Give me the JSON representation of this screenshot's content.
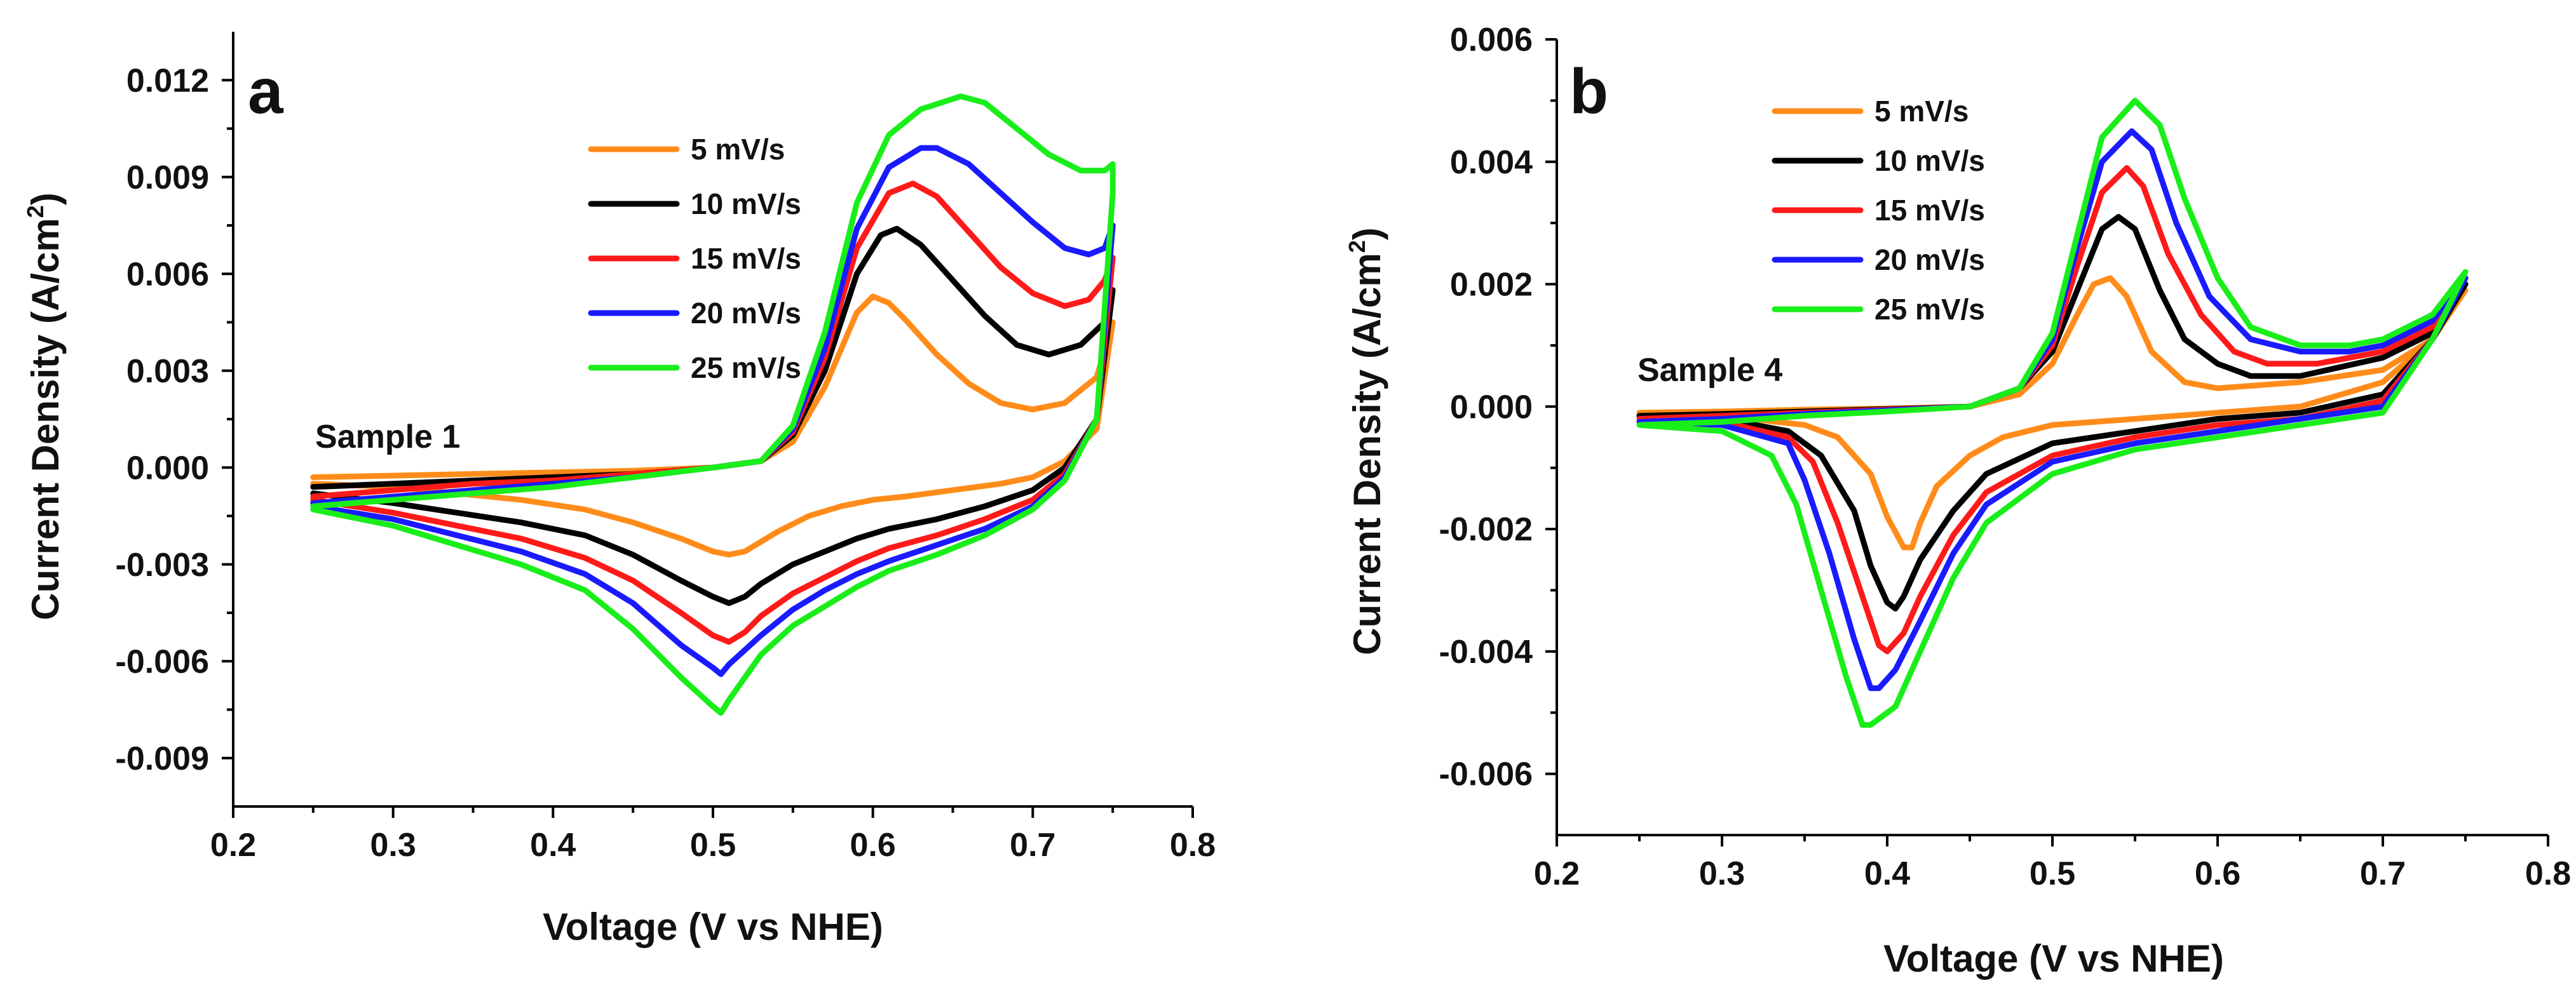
{
  "chart_data": [
    {
      "type": "line",
      "panel_label": "a",
      "annotation": "Sample 1",
      "xlabel": "Voltage (V vs NHE)",
      "ylabel": "Current Density (A/cm",
      "ylabel_sup": "2",
      "ylabel_close": ")",
      "xlim": [
        0.2,
        0.8
      ],
      "ylim": [
        -0.0105,
        0.0135
      ],
      "xticks": [
        0.2,
        0.3,
        0.4,
        0.5,
        0.6,
        0.7,
        0.8
      ],
      "xtick_labels": [
        "0.2",
        "0.3",
        "0.4",
        "0.5",
        "0.6",
        "0.7",
        "0.8"
      ],
      "yticks": [
        -0.009,
        -0.006,
        -0.003,
        0.0,
        0.003,
        0.006,
        0.009,
        0.012
      ],
      "ytick_labels": [
        "-0.009",
        "-0.006",
        "-0.003",
        "0.000",
        "0.003",
        "0.006",
        "0.009",
        "0.012"
      ],
      "legend_position": "upper-center",
      "series": [
        {
          "name": "5 mV/s",
          "color": "#ff8c1a",
          "x": [
            0.25,
            0.3,
            0.35,
            0.4,
            0.45,
            0.5,
            0.53,
            0.55,
            0.57,
            0.59,
            0.6,
            0.61,
            0.62,
            0.64,
            0.66,
            0.68,
            0.7,
            0.72,
            0.74,
            0.75,
            0.74,
            0.72,
            0.7,
            0.68,
            0.65,
            0.62,
            0.6,
            0.58,
            0.56,
            0.54,
            0.52,
            0.51,
            0.5,
            0.48,
            0.45,
            0.42,
            0.38,
            0.34,
            0.3,
            0.25
          ],
          "y": [
            -0.0003,
            -0.00025,
            -0.0002,
            -0.00015,
            -0.0001,
            0.0,
            0.0002,
            0.0008,
            0.0025,
            0.0048,
            0.0053,
            0.0051,
            0.0046,
            0.0035,
            0.0026,
            0.002,
            0.0018,
            0.002,
            0.0028,
            0.0045,
            0.0012,
            0.0002,
            -0.0003,
            -0.0005,
            -0.0007,
            -0.0009,
            -0.001,
            -0.0012,
            -0.0015,
            -0.002,
            -0.0026,
            -0.0027,
            -0.0026,
            -0.0022,
            -0.0017,
            -0.0013,
            -0.001,
            -0.0008,
            -0.0006,
            -0.0005
          ]
        },
        {
          "name": "10 mV/s",
          "color": "#000000",
          "x": [
            0.25,
            0.3,
            0.35,
            0.4,
            0.45,
            0.5,
            0.53,
            0.55,
            0.57,
            0.59,
            0.605,
            0.615,
            0.63,
            0.65,
            0.67,
            0.69,
            0.71,
            0.73,
            0.745,
            0.75,
            0.74,
            0.72,
            0.7,
            0.67,
            0.64,
            0.61,
            0.59,
            0.57,
            0.55,
            0.53,
            0.52,
            0.51,
            0.5,
            0.48,
            0.45,
            0.42,
            0.38,
            0.34,
            0.3,
            0.25
          ],
          "y": [
            -0.0006,
            -0.0005,
            -0.0004,
            -0.0003,
            -0.0002,
            0.0,
            0.0002,
            0.001,
            0.003,
            0.006,
            0.0072,
            0.0074,
            0.0069,
            0.0058,
            0.0047,
            0.0038,
            0.0035,
            0.0038,
            0.0045,
            0.0055,
            0.0015,
            0.0,
            -0.0007,
            -0.0012,
            -0.0016,
            -0.0019,
            -0.0022,
            -0.0026,
            -0.003,
            -0.0036,
            -0.004,
            -0.0042,
            -0.004,
            -0.0035,
            -0.0027,
            -0.0021,
            -0.0017,
            -0.0014,
            -0.0011,
            -0.0008
          ]
        },
        {
          "name": "15 mV/s",
          "color": "#ff1a1a",
          "x": [
            0.25,
            0.3,
            0.35,
            0.4,
            0.45,
            0.5,
            0.53,
            0.55,
            0.57,
            0.59,
            0.61,
            0.625,
            0.64,
            0.66,
            0.68,
            0.7,
            0.72,
            0.735,
            0.745,
            0.75,
            0.74,
            0.72,
            0.7,
            0.67,
            0.64,
            0.61,
            0.59,
            0.57,
            0.55,
            0.53,
            0.52,
            0.51,
            0.5,
            0.48,
            0.45,
            0.42,
            0.38,
            0.34,
            0.3,
            0.25
          ],
          "y": [
            -0.0009,
            -0.0007,
            -0.0005,
            -0.0004,
            -0.0002,
            0.0,
            0.0002,
            0.0011,
            0.0034,
            0.0068,
            0.0085,
            0.0088,
            0.0084,
            0.0073,
            0.0062,
            0.0054,
            0.005,
            0.0052,
            0.0058,
            0.0065,
            0.0015,
            -0.0002,
            -0.001,
            -0.0016,
            -0.0021,
            -0.0025,
            -0.0029,
            -0.0034,
            -0.0039,
            -0.0046,
            -0.0051,
            -0.0054,
            -0.0052,
            -0.0045,
            -0.0035,
            -0.0028,
            -0.0022,
            -0.0018,
            -0.0014,
            -0.001
          ]
        },
        {
          "name": "20 mV/s",
          "color": "#1a1aff",
          "x": [
            0.25,
            0.3,
            0.35,
            0.4,
            0.45,
            0.5,
            0.53,
            0.55,
            0.57,
            0.59,
            0.61,
            0.63,
            0.64,
            0.66,
            0.68,
            0.7,
            0.72,
            0.735,
            0.745,
            0.75,
            0.74,
            0.72,
            0.7,
            0.67,
            0.64,
            0.61,
            0.59,
            0.57,
            0.55,
            0.53,
            0.51,
            0.505,
            0.5,
            0.48,
            0.45,
            0.42,
            0.38,
            0.34,
            0.3,
            0.25
          ],
          "y": [
            -0.0011,
            -0.0009,
            -0.0007,
            -0.0005,
            -0.0003,
            0.0,
            0.0002,
            0.0012,
            0.0037,
            0.0074,
            0.0093,
            0.0099,
            0.0099,
            0.0094,
            0.0085,
            0.0076,
            0.0068,
            0.0066,
            0.0068,
            0.0075,
            0.0015,
            -0.0003,
            -0.0012,
            -0.0019,
            -0.0024,
            -0.0029,
            -0.0033,
            -0.0038,
            -0.0044,
            -0.0052,
            -0.0061,
            -0.0064,
            -0.0062,
            -0.0055,
            -0.0042,
            -0.0033,
            -0.0026,
            -0.0021,
            -0.0016,
            -0.0012
          ]
        },
        {
          "name": "25 mV/s",
          "color": "#1aee1a",
          "x": [
            0.25,
            0.3,
            0.35,
            0.4,
            0.45,
            0.5,
            0.53,
            0.55,
            0.57,
            0.59,
            0.61,
            0.63,
            0.655,
            0.67,
            0.69,
            0.71,
            0.73,
            0.745,
            0.75,
            0.75,
            0.74,
            0.72,
            0.7,
            0.67,
            0.64,
            0.61,
            0.59,
            0.57,
            0.55,
            0.53,
            0.51,
            0.505,
            0.5,
            0.48,
            0.45,
            0.42,
            0.38,
            0.34,
            0.3,
            0.25
          ],
          "y": [
            -0.0012,
            -0.001,
            -0.0008,
            -0.0006,
            -0.0003,
            0.0,
            0.0002,
            0.0013,
            0.0042,
            0.0082,
            0.0103,
            0.0111,
            0.0115,
            0.0113,
            0.0105,
            0.0097,
            0.0092,
            0.0092,
            0.0094,
            0.0085,
            0.0015,
            -0.0004,
            -0.0013,
            -0.0021,
            -0.0027,
            -0.0032,
            -0.0037,
            -0.0043,
            -0.0049,
            -0.0058,
            -0.0072,
            -0.0076,
            -0.0074,
            -0.0065,
            -0.005,
            -0.0038,
            -0.003,
            -0.0024,
            -0.0018,
            -0.0013
          ]
        }
      ]
    },
    {
      "type": "line",
      "panel_label": "b",
      "annotation": "Sample 4",
      "xlabel": "Voltage (V vs NHE)",
      "ylabel": "Current Density (A/cm",
      "ylabel_sup": "2",
      "ylabel_close": ")",
      "xlim": [
        0.2,
        0.8
      ],
      "ylim": [
        -0.007,
        0.006
      ],
      "xticks": [
        0.2,
        0.3,
        0.4,
        0.5,
        0.6,
        0.7,
        0.8
      ],
      "xtick_labels": [
        "0.2",
        "0.3",
        "0.4",
        "0.5",
        "0.6",
        "0.7",
        "0.8"
      ],
      "yticks": [
        -0.006,
        -0.004,
        -0.002,
        0.0,
        0.002,
        0.004,
        0.006
      ],
      "ytick_labels": [
        "-0.006",
        "-0.004",
        "-0.002",
        "0.000",
        "0.002",
        "0.004",
        "0.006"
      ],
      "legend_position": "upper-left",
      "series": [
        {
          "name": "5 mV/s",
          "color": "#ff8c1a",
          "x": [
            0.25,
            0.3,
            0.35,
            0.4,
            0.45,
            0.48,
            0.5,
            0.515,
            0.525,
            0.535,
            0.545,
            0.56,
            0.58,
            0.6,
            0.65,
            0.7,
            0.73,
            0.75,
            0.73,
            0.7,
            0.65,
            0.6,
            0.55,
            0.5,
            0.47,
            0.45,
            0.43,
            0.42,
            0.415,
            0.41,
            0.4,
            0.39,
            0.37,
            0.35,
            0.3,
            0.25
          ],
          "y": [
            -0.0001,
            -8e-05,
            -5e-05,
            -3e-05,
            0.0,
            0.0002,
            0.0007,
            0.0015,
            0.002,
            0.0021,
            0.0018,
            0.0009,
            0.0004,
            0.0003,
            0.0004,
            0.0006,
            0.0011,
            0.0019,
            0.0011,
            0.0004,
            0.0,
            -0.0001,
            -0.0002,
            -0.0003,
            -0.0005,
            -0.0008,
            -0.0013,
            -0.0019,
            -0.0023,
            -0.0023,
            -0.0018,
            -0.0011,
            -0.0005,
            -0.0003,
            -0.00015,
            -0.0001
          ]
        },
        {
          "name": "10 mV/s",
          "color": "#000000",
          "x": [
            0.25,
            0.3,
            0.35,
            0.4,
            0.45,
            0.48,
            0.5,
            0.515,
            0.53,
            0.54,
            0.55,
            0.565,
            0.58,
            0.6,
            0.62,
            0.65,
            0.7,
            0.73,
            0.75,
            0.73,
            0.7,
            0.65,
            0.6,
            0.55,
            0.5,
            0.46,
            0.44,
            0.42,
            0.41,
            0.405,
            0.4,
            0.39,
            0.38,
            0.36,
            0.34,
            0.3,
            0.25
          ],
          "y": [
            -0.00015,
            -0.00012,
            -8e-05,
            -4e-05,
            0.0,
            0.0003,
            0.0009,
            0.0019,
            0.0029,
            0.0031,
            0.0029,
            0.0019,
            0.0011,
            0.0007,
            0.0005,
            0.0005,
            0.0008,
            0.0012,
            0.002,
            0.0011,
            0.0002,
            -0.0001,
            -0.0002,
            -0.0004,
            -0.0006,
            -0.0011,
            -0.0017,
            -0.0025,
            -0.0031,
            -0.0033,
            -0.0032,
            -0.0026,
            -0.0017,
            -0.0008,
            -0.0004,
            -0.0002,
            -0.00015
          ]
        },
        {
          "name": "15 mV/s",
          "color": "#ff1a1a",
          "x": [
            0.25,
            0.3,
            0.35,
            0.4,
            0.45,
            0.48,
            0.5,
            0.515,
            0.53,
            0.545,
            0.555,
            0.57,
            0.59,
            0.61,
            0.63,
            0.66,
            0.7,
            0.73,
            0.75,
            0.73,
            0.7,
            0.65,
            0.6,
            0.55,
            0.5,
            0.46,
            0.44,
            0.42,
            0.41,
            0.4,
            0.395,
            0.385,
            0.37,
            0.355,
            0.34,
            0.3,
            0.25
          ],
          "y": [
            -0.0002,
            -0.00015,
            -0.0001,
            -5e-05,
            0.0,
            0.0003,
            0.001,
            0.0023,
            0.0035,
            0.0039,
            0.0036,
            0.0025,
            0.0015,
            0.0009,
            0.0007,
            0.0007,
            0.0009,
            0.0013,
            0.0021,
            0.0011,
            0.0001,
            -0.0002,
            -0.0003,
            -0.0005,
            -0.0008,
            -0.0014,
            -0.0021,
            -0.0031,
            -0.0037,
            -0.004,
            -0.0039,
            -0.0031,
            -0.0019,
            -0.0009,
            -0.0005,
            -0.00025,
            -0.0002
          ]
        },
        {
          "name": "20 mV/s",
          "color": "#1a1aff",
          "x": [
            0.25,
            0.3,
            0.35,
            0.4,
            0.45,
            0.48,
            0.5,
            0.515,
            0.53,
            0.548,
            0.56,
            0.575,
            0.595,
            0.62,
            0.65,
            0.68,
            0.7,
            0.73,
            0.75,
            0.73,
            0.7,
            0.65,
            0.6,
            0.55,
            0.5,
            0.46,
            0.44,
            0.42,
            0.405,
            0.395,
            0.39,
            0.38,
            0.365,
            0.35,
            0.34,
            0.3,
            0.25
          ],
          "y": [
            -0.00025,
            -0.0002,
            -0.00012,
            -6e-05,
            0.0,
            0.0003,
            0.0011,
            0.0026,
            0.004,
            0.0045,
            0.0042,
            0.003,
            0.0018,
            0.0011,
            0.0009,
            0.0009,
            0.001,
            0.0014,
            0.0021,
            0.0011,
            0.0,
            -0.0002,
            -0.0004,
            -0.0006,
            -0.0009,
            -0.0016,
            -0.0024,
            -0.0035,
            -0.0043,
            -0.0046,
            -0.0046,
            -0.0038,
            -0.0024,
            -0.0012,
            -0.0006,
            -0.0003,
            -0.00025
          ]
        },
        {
          "name": "25 mV/s",
          "color": "#1aee1a",
          "x": [
            0.25,
            0.3,
            0.35,
            0.4,
            0.45,
            0.48,
            0.5,
            0.515,
            0.53,
            0.55,
            0.565,
            0.58,
            0.6,
            0.62,
            0.65,
            0.68,
            0.7,
            0.73,
            0.75,
            0.73,
            0.7,
            0.65,
            0.6,
            0.55,
            0.5,
            0.46,
            0.44,
            0.42,
            0.405,
            0.39,
            0.385,
            0.375,
            0.36,
            0.345,
            0.33,
            0.3,
            0.25
          ],
          "y": [
            -0.0003,
            -0.00025,
            -0.00015,
            -8e-05,
            0.0,
            0.0003,
            0.0012,
            0.0028,
            0.0044,
            0.005,
            0.0046,
            0.0034,
            0.0021,
            0.0013,
            0.001,
            0.001,
            0.0011,
            0.0015,
            0.0022,
            0.0011,
            -0.0001,
            -0.0003,
            -0.0005,
            -0.0007,
            -0.0011,
            -0.0019,
            -0.0028,
            -0.004,
            -0.0049,
            -0.0052,
            -0.0052,
            -0.0044,
            -0.003,
            -0.0016,
            -0.0008,
            -0.0004,
            -0.0003
          ]
        }
      ]
    }
  ]
}
